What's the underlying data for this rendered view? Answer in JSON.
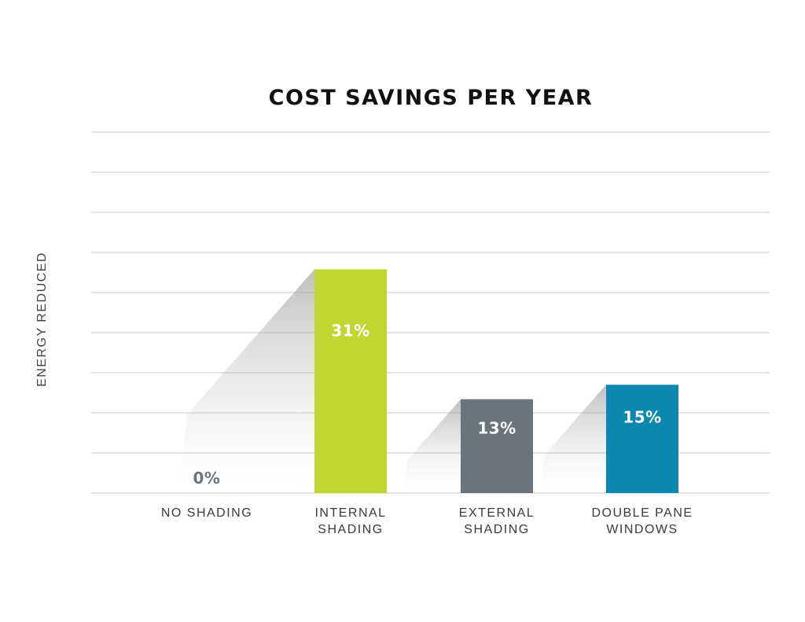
{
  "chart_data": {
    "type": "bar",
    "title": "COST SAVINGS PER YEAR",
    "xlabel": "",
    "ylabel": "ENERGY REDUCED",
    "categories": [
      [
        "NO SHADING"
      ],
      [
        "INTERNAL",
        "SHADING"
      ],
      [
        "EXTERNAL",
        "SHADING"
      ],
      [
        "DOUBLE PANE",
        "WINDOWS"
      ]
    ],
    "values": [
      0,
      31,
      13,
      15
    ],
    "data_labels": [
      "0%",
      "31%",
      "13%",
      "15%"
    ],
    "bar_colors": [
      "#6b747a",
      "#c0d631",
      "#6b747a",
      "#0a88b0"
    ],
    "label_colors": [
      "#6b747a",
      "#ffffff",
      "#ffffff",
      "#ffffff"
    ],
    "ylim": [
      0,
      50
    ],
    "grid": true,
    "legend": "none"
  }
}
